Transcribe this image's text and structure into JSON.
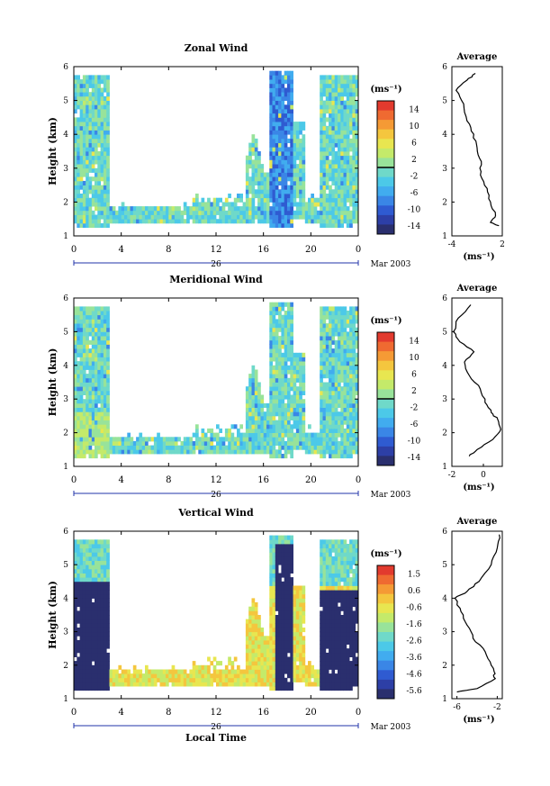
{
  "figure": {
    "x_axis_label": "Local Time",
    "date_label": "Mar 2003",
    "day_label": "26",
    "colorbar_unit": "(ms⁻¹)",
    "avg_unit": "(ms⁻¹)"
  },
  "colors": {
    "scale": [
      "#2a2f6e",
      "#2d3fa6",
      "#2f5bd1",
      "#3a86e6",
      "#41acef",
      "#4cc9e8",
      "#6fd9c9",
      "#98e39a",
      "#c4ea6a",
      "#e8e650",
      "#f4c63e",
      "#f59a35",
      "#ef6a31",
      "#e23a2e"
    ]
  },
  "chart_data": [
    {
      "type": "heatmap",
      "title": "Zonal Wind",
      "ylabel": "Height (km)",
      "xlabel": "",
      "xlim": [
        0,
        24
      ],
      "ylim": [
        1,
        6
      ],
      "x_ticks": [
        "0",
        "4",
        "8",
        "12",
        "16",
        "20",
        "0"
      ],
      "y_ticks": [
        "1",
        "2",
        "3",
        "4",
        "5",
        "6"
      ],
      "colorbar": {
        "min": -15,
        "max": 15,
        "ticks": [
          "14",
          "10",
          "6",
          "2",
          "-2",
          "-6",
          "-10",
          "-14"
        ]
      },
      "average_profile": {
        "title": "Average",
        "xlim": [
          -4,
          2
        ],
        "x_ticks": [
          "-4",
          "2"
        ],
        "x": [
          -1.2,
          -2.2,
          -3.5,
          -2.6,
          -2.2,
          -1.4,
          -1.0,
          -0.5,
          -0.6,
          0.2,
          0.6,
          1.2,
          0.6,
          1.6
        ],
        "y": [
          5.8,
          5.6,
          5.3,
          4.9,
          4.4,
          4.0,
          3.6,
          3.2,
          2.8,
          2.4,
          2.0,
          1.6,
          1.4,
          1.3
        ]
      }
    },
    {
      "type": "heatmap",
      "title": "Meridional Wind",
      "ylabel": "Height (km)",
      "xlabel": "",
      "xlim": [
        0,
        24
      ],
      "ylim": [
        1,
        6
      ],
      "x_ticks": [
        "0",
        "4",
        "8",
        "12",
        "16",
        "20",
        "0"
      ],
      "y_ticks": [
        "1",
        "2",
        "3",
        "4",
        "5",
        "6"
      ],
      "colorbar": {
        "min": -15,
        "max": 15,
        "ticks": [
          "14",
          "10",
          "6",
          "2",
          "-2",
          "-6",
          "-10",
          "-14"
        ]
      },
      "average_profile": {
        "title": "Average",
        "xlim": [
          -2,
          1.2
        ],
        "x_ticks": [
          "-2",
          "0"
        ],
        "x": [
          -0.8,
          -1.6,
          -1.9,
          -1.5,
          -0.6,
          -1.2,
          -0.9,
          -0.2,
          0.1,
          0.5,
          0.9,
          1.1,
          0.6,
          -0.4,
          -0.9
        ],
        "y": [
          5.8,
          5.4,
          5.0,
          4.7,
          4.4,
          4.1,
          3.7,
          3.3,
          2.9,
          2.6,
          2.4,
          2.1,
          1.8,
          1.5,
          1.3
        ]
      }
    },
    {
      "type": "heatmap",
      "title": "Vertical Wind",
      "ylabel": "Height (km)",
      "xlabel": "Local Time",
      "xlim": [
        0,
        24
      ],
      "ylim": [
        1,
        6
      ],
      "x_ticks": [
        "0",
        "4",
        "8",
        "12",
        "16",
        "20",
        "0"
      ],
      "y_ticks": [
        "1",
        "2",
        "3",
        "4",
        "5",
        "6"
      ],
      "colorbar": {
        "min": -6,
        "max": 2,
        "ticks": [
          "1.5",
          "0.6",
          "-0.6",
          "-1.6",
          "-2.6",
          "-3.6",
          "-4.6",
          "-5.6"
        ]
      },
      "average_profile": {
        "title": "Average",
        "xlim": [
          -6.5,
          -1.5
        ],
        "x_ticks": [
          "-6",
          "-2"
        ],
        "x": [
          -1.8,
          -2.0,
          -2.6,
          -3.8,
          -5.0,
          -6.2,
          -5.6,
          -5.0,
          -4.4,
          -3.2,
          -2.6,
          -2.3,
          -2.2,
          -4.0,
          -6.0
        ],
        "y": [
          5.9,
          5.5,
          5.0,
          4.5,
          4.2,
          4.0,
          3.6,
          3.2,
          2.8,
          2.4,
          2.0,
          1.8,
          1.6,
          1.3,
          1.2
        ]
      }
    }
  ]
}
